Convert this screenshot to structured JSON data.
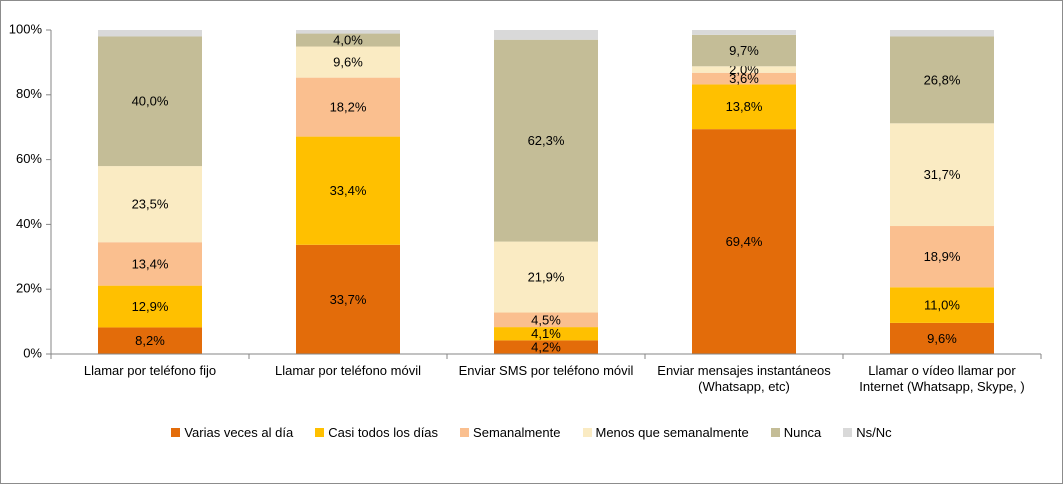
{
  "chart_data": {
    "type": "stacked_bar",
    "categories": [
      "Llamar por teléfono fijo",
      "Llamar por teléfono móvil",
      "Enviar SMS por teléfono móvil",
      "Enviar mensajes instantáneos (Whatsapp, etc)",
      "Llamar o vídeo llamar por Internet (Whatsapp, Skype, )"
    ],
    "series": [
      {
        "name": "Varias veces al día",
        "color": "#E36C0A",
        "values": [
          8.2,
          33.7,
          4.2,
          69.4,
          9.6
        ],
        "value_labels": [
          "8,2%",
          "33,7%",
          "4,2%",
          "69,4%",
          "9,6%"
        ]
      },
      {
        "name": "Casi todos los días",
        "color": "#FFC000",
        "values": [
          12.9,
          33.4,
          4.1,
          13.8,
          11.0
        ],
        "value_labels": [
          "12,9%",
          "33,4%",
          "4,1%",
          "13,8%",
          "11,0%"
        ]
      },
      {
        "name": "Semanalmente",
        "color": "#FABF8F",
        "values": [
          13.4,
          18.2,
          4.5,
          3.6,
          18.9
        ],
        "value_labels": [
          "13,4%",
          "18,2%",
          "4,5%",
          "3,6%",
          "18,9%"
        ]
      },
      {
        "name": "Menos que semanalmente",
        "color": "#FAEBC3",
        "values": [
          23.5,
          9.6,
          21.9,
          2.0,
          31.7
        ],
        "value_labels": [
          "23,5%",
          "9,6%",
          "21,9%",
          "2,0%",
          "31,7%"
        ]
      },
      {
        "name": "Nunca",
        "color": "#C4BD97",
        "values": [
          40.0,
          4.0,
          62.3,
          9.7,
          26.8
        ],
        "value_labels": [
          "40,0%",
          "4,0%",
          "62,3%",
          "9,7%",
          "26,8%"
        ]
      },
      {
        "name": "Ns/Nc",
        "color": "#D9D9D9",
        "values": [
          2.0,
          1.1,
          3.0,
          1.5,
          2.0
        ]
      }
    ],
    "ylim": [
      0,
      100
    ],
    "yticks": [
      {
        "value": 0,
        "label": "0%"
      },
      {
        "value": 20,
        "label": "20%"
      },
      {
        "value": 40,
        "label": "40%"
      },
      {
        "value": 60,
        "label": "60%"
      },
      {
        "value": 80,
        "label": "80%"
      },
      {
        "value": 100,
        "label": "100%"
      }
    ],
    "legend": "bottom"
  }
}
